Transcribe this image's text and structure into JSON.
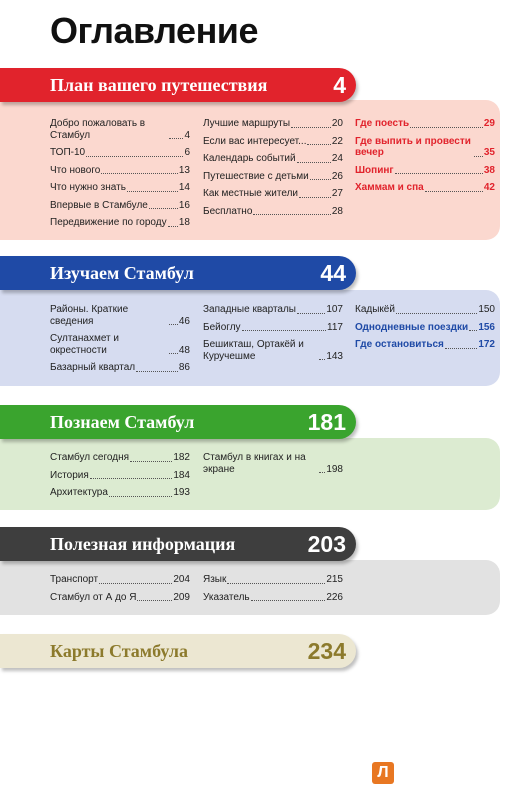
{
  "title": "Оглавление",
  "sections": [
    {
      "title": "План вашего путешествия",
      "page": "4",
      "columns": [
        [
          {
            "text": "Добро пожаловать в Стамбул",
            "page": "4"
          },
          {
            "text": "ТОП-10",
            "page": "6"
          },
          {
            "text": "Что нового",
            "page": "13"
          },
          {
            "text": "Что нужно знать",
            "page": "14"
          },
          {
            "text": "Впервые в Стамбуле",
            "page": "16"
          },
          {
            "text": "Передвижение по городу",
            "page": "18"
          }
        ],
        [
          {
            "text": "Лучшие маршруты",
            "page": "20"
          },
          {
            "text": "Если вас интересует...",
            "page": "22"
          },
          {
            "text": "Календарь событий",
            "page": "24"
          },
          {
            "text": "Путешествие с детьми",
            "page": "26"
          },
          {
            "text": "Как местные жители",
            "page": "27"
          },
          {
            "text": "Бесплатно",
            "page": "28"
          }
        ],
        [
          {
            "text": "Где поесть",
            "page": "29"
          },
          {
            "text": "Где выпить и провести вечер",
            "page": "35"
          },
          {
            "text": "Шопинг",
            "page": "38"
          },
          {
            "text": "Хаммам и спа",
            "page": "42"
          }
        ]
      ]
    },
    {
      "title": "Изучаем Стамбул",
      "page": "44",
      "columns": [
        [
          {
            "text": "Районы. Краткие сведения",
            "page": "46"
          },
          {
            "text": "Султанахмет и окрестности",
            "page": "48"
          },
          {
            "text": "Базарный квартал",
            "page": "86"
          }
        ],
        [
          {
            "text": "Западные кварталы",
            "page": "107"
          },
          {
            "text": "Бейоглу",
            "page": "117"
          },
          {
            "text": "Бешикташ, Ортакёй и Куручешме",
            "page": "143"
          }
        ],
        [
          {
            "text": "Кадыкёй",
            "page": "150"
          },
          {
            "text": "Однодневные поездки",
            "page": "156"
          },
          {
            "text": "Где остановиться",
            "page": "172"
          }
        ]
      ]
    },
    {
      "title": "Познаем Стамбул",
      "page": "181",
      "columns": [
        [
          {
            "text": "Стамбул сегодня",
            "page": "182"
          },
          {
            "text": "История",
            "page": "184"
          },
          {
            "text": "Архитектура",
            "page": "193"
          }
        ],
        [
          {
            "text": "Стамбул в книгах и на экране",
            "page": "198"
          }
        ]
      ]
    },
    {
      "title": "Полезная информация",
      "page": "203",
      "columns": [
        [
          {
            "text": "Транспорт",
            "page": "204"
          },
          {
            "text": "Стамбул от А до Я",
            "page": "209"
          }
        ],
        [
          {
            "text": "Язык",
            "page": "215"
          },
          {
            "text": "Указатель",
            "page": "226"
          }
        ]
      ]
    },
    {
      "title": "Карты Стамбула",
      "page": "234",
      "columns": []
    }
  ],
  "logo": "Л"
}
